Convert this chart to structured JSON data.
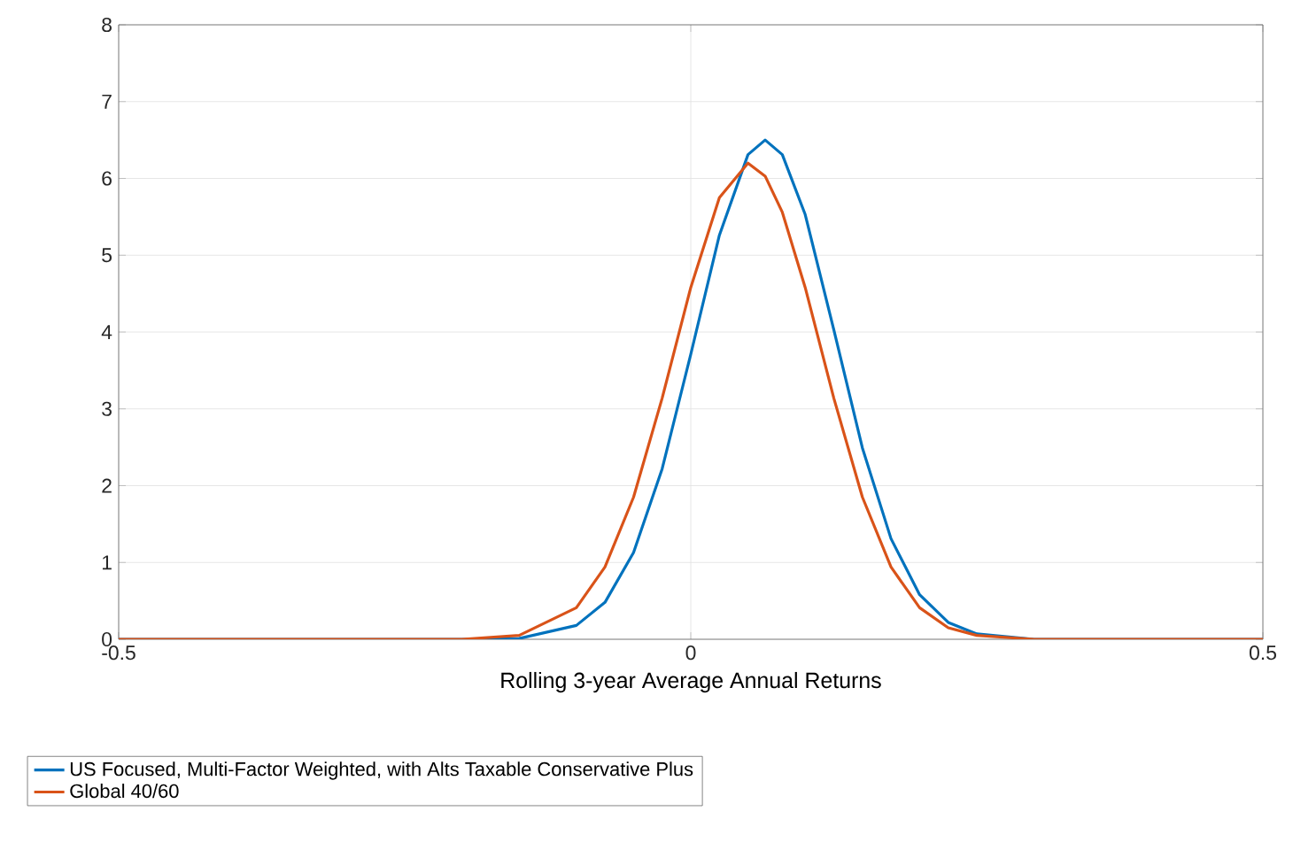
{
  "chart_data": {
    "type": "line",
    "xlabel": "Rolling 3-year Average Annual Returns",
    "x": [
      -0.5,
      -0.2,
      -0.15,
      -0.1,
      -0.075,
      -0.05,
      -0.025,
      0,
      0.025,
      0.05,
      0.065,
      0.08,
      0.1,
      0.125,
      0.15,
      0.175,
      0.2,
      0.225,
      0.25,
      0.3,
      0.5
    ],
    "series": [
      {
        "name": "US Focused, Multi-Factor Weighted, with Alts Taxable Conservative Plus",
        "color": "#0072bd",
        "values": [
          0,
          0,
          0.01,
          0.18,
          0.48,
          1.13,
          2.22,
          3.71,
          5.26,
          6.31,
          6.5,
          6.31,
          5.53,
          4.03,
          2.49,
          1.31,
          0.58,
          0.22,
          0.07,
          0,
          0
        ]
      },
      {
        "name": "Global 40/60",
        "color": "#d95319",
        "values": [
          0,
          0,
          0.05,
          0.41,
          0.94,
          1.85,
          3.14,
          4.58,
          5.75,
          6.2,
          6.03,
          5.56,
          4.58,
          3.14,
          1.85,
          0.94,
          0.41,
          0.15,
          0.05,
          0,
          0
        ]
      }
    ],
    "xlim": [
      -0.5,
      0.5
    ],
    "xticks": [
      -0.5,
      0,
      0.5
    ],
    "ylim": [
      0,
      8
    ],
    "yticks": [
      0,
      1,
      2,
      3,
      4,
      5,
      6,
      7,
      8
    ],
    "grid": true,
    "legend": "bottom",
    "marker": "none",
    "line_style": "solid"
  }
}
